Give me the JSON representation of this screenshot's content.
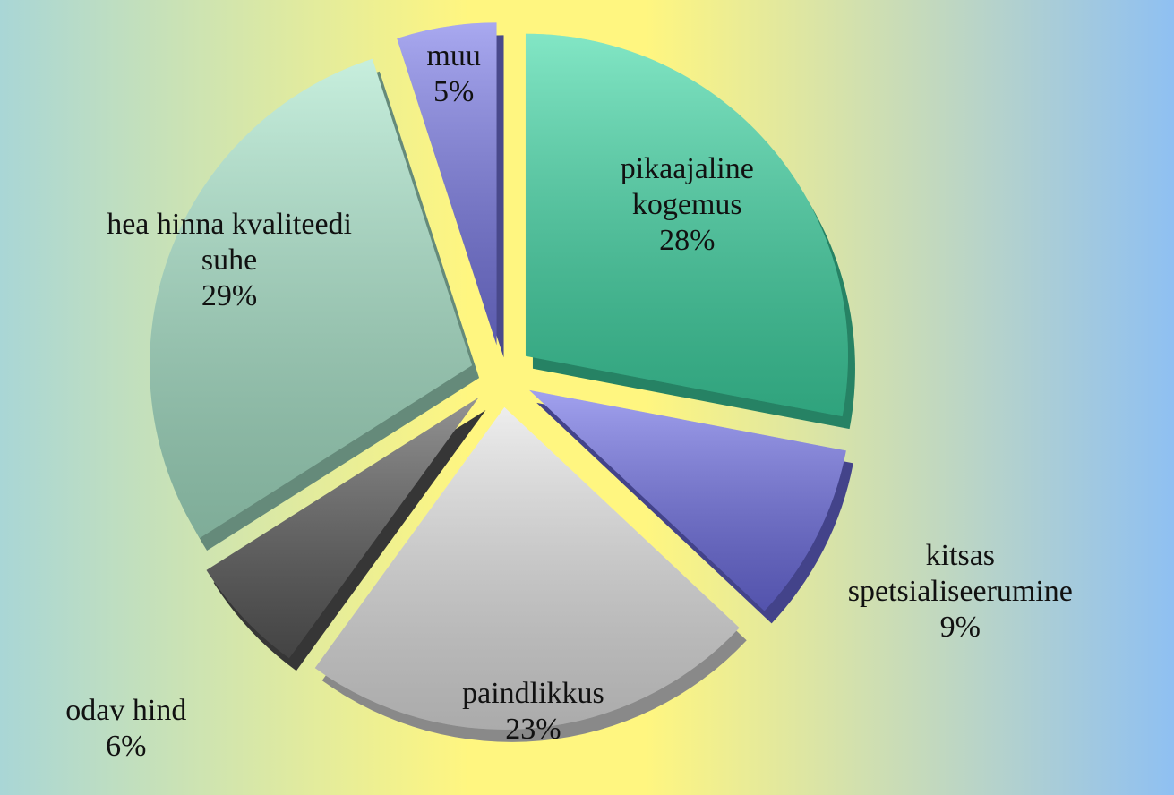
{
  "chart_data": {
    "type": "pie",
    "categories": [
      "pikaajaline kogemus",
      "kitsas spetsialiseerumine",
      "paindlikkus",
      "odav hind",
      "hea hinna kvaliteedi suhe",
      "muu"
    ],
    "values": [
      28,
      9,
      23,
      6,
      29,
      5
    ],
    "value_labels": [
      "28%",
      "9%",
      "23%",
      "6%",
      "29%",
      "5%"
    ],
    "colors": [
      "#3fd9a6",
      "#6f6fe6",
      "#e4e4e4",
      "#5a5a5a",
      "#a9e6cb",
      "#7a7ae8"
    ]
  }
}
